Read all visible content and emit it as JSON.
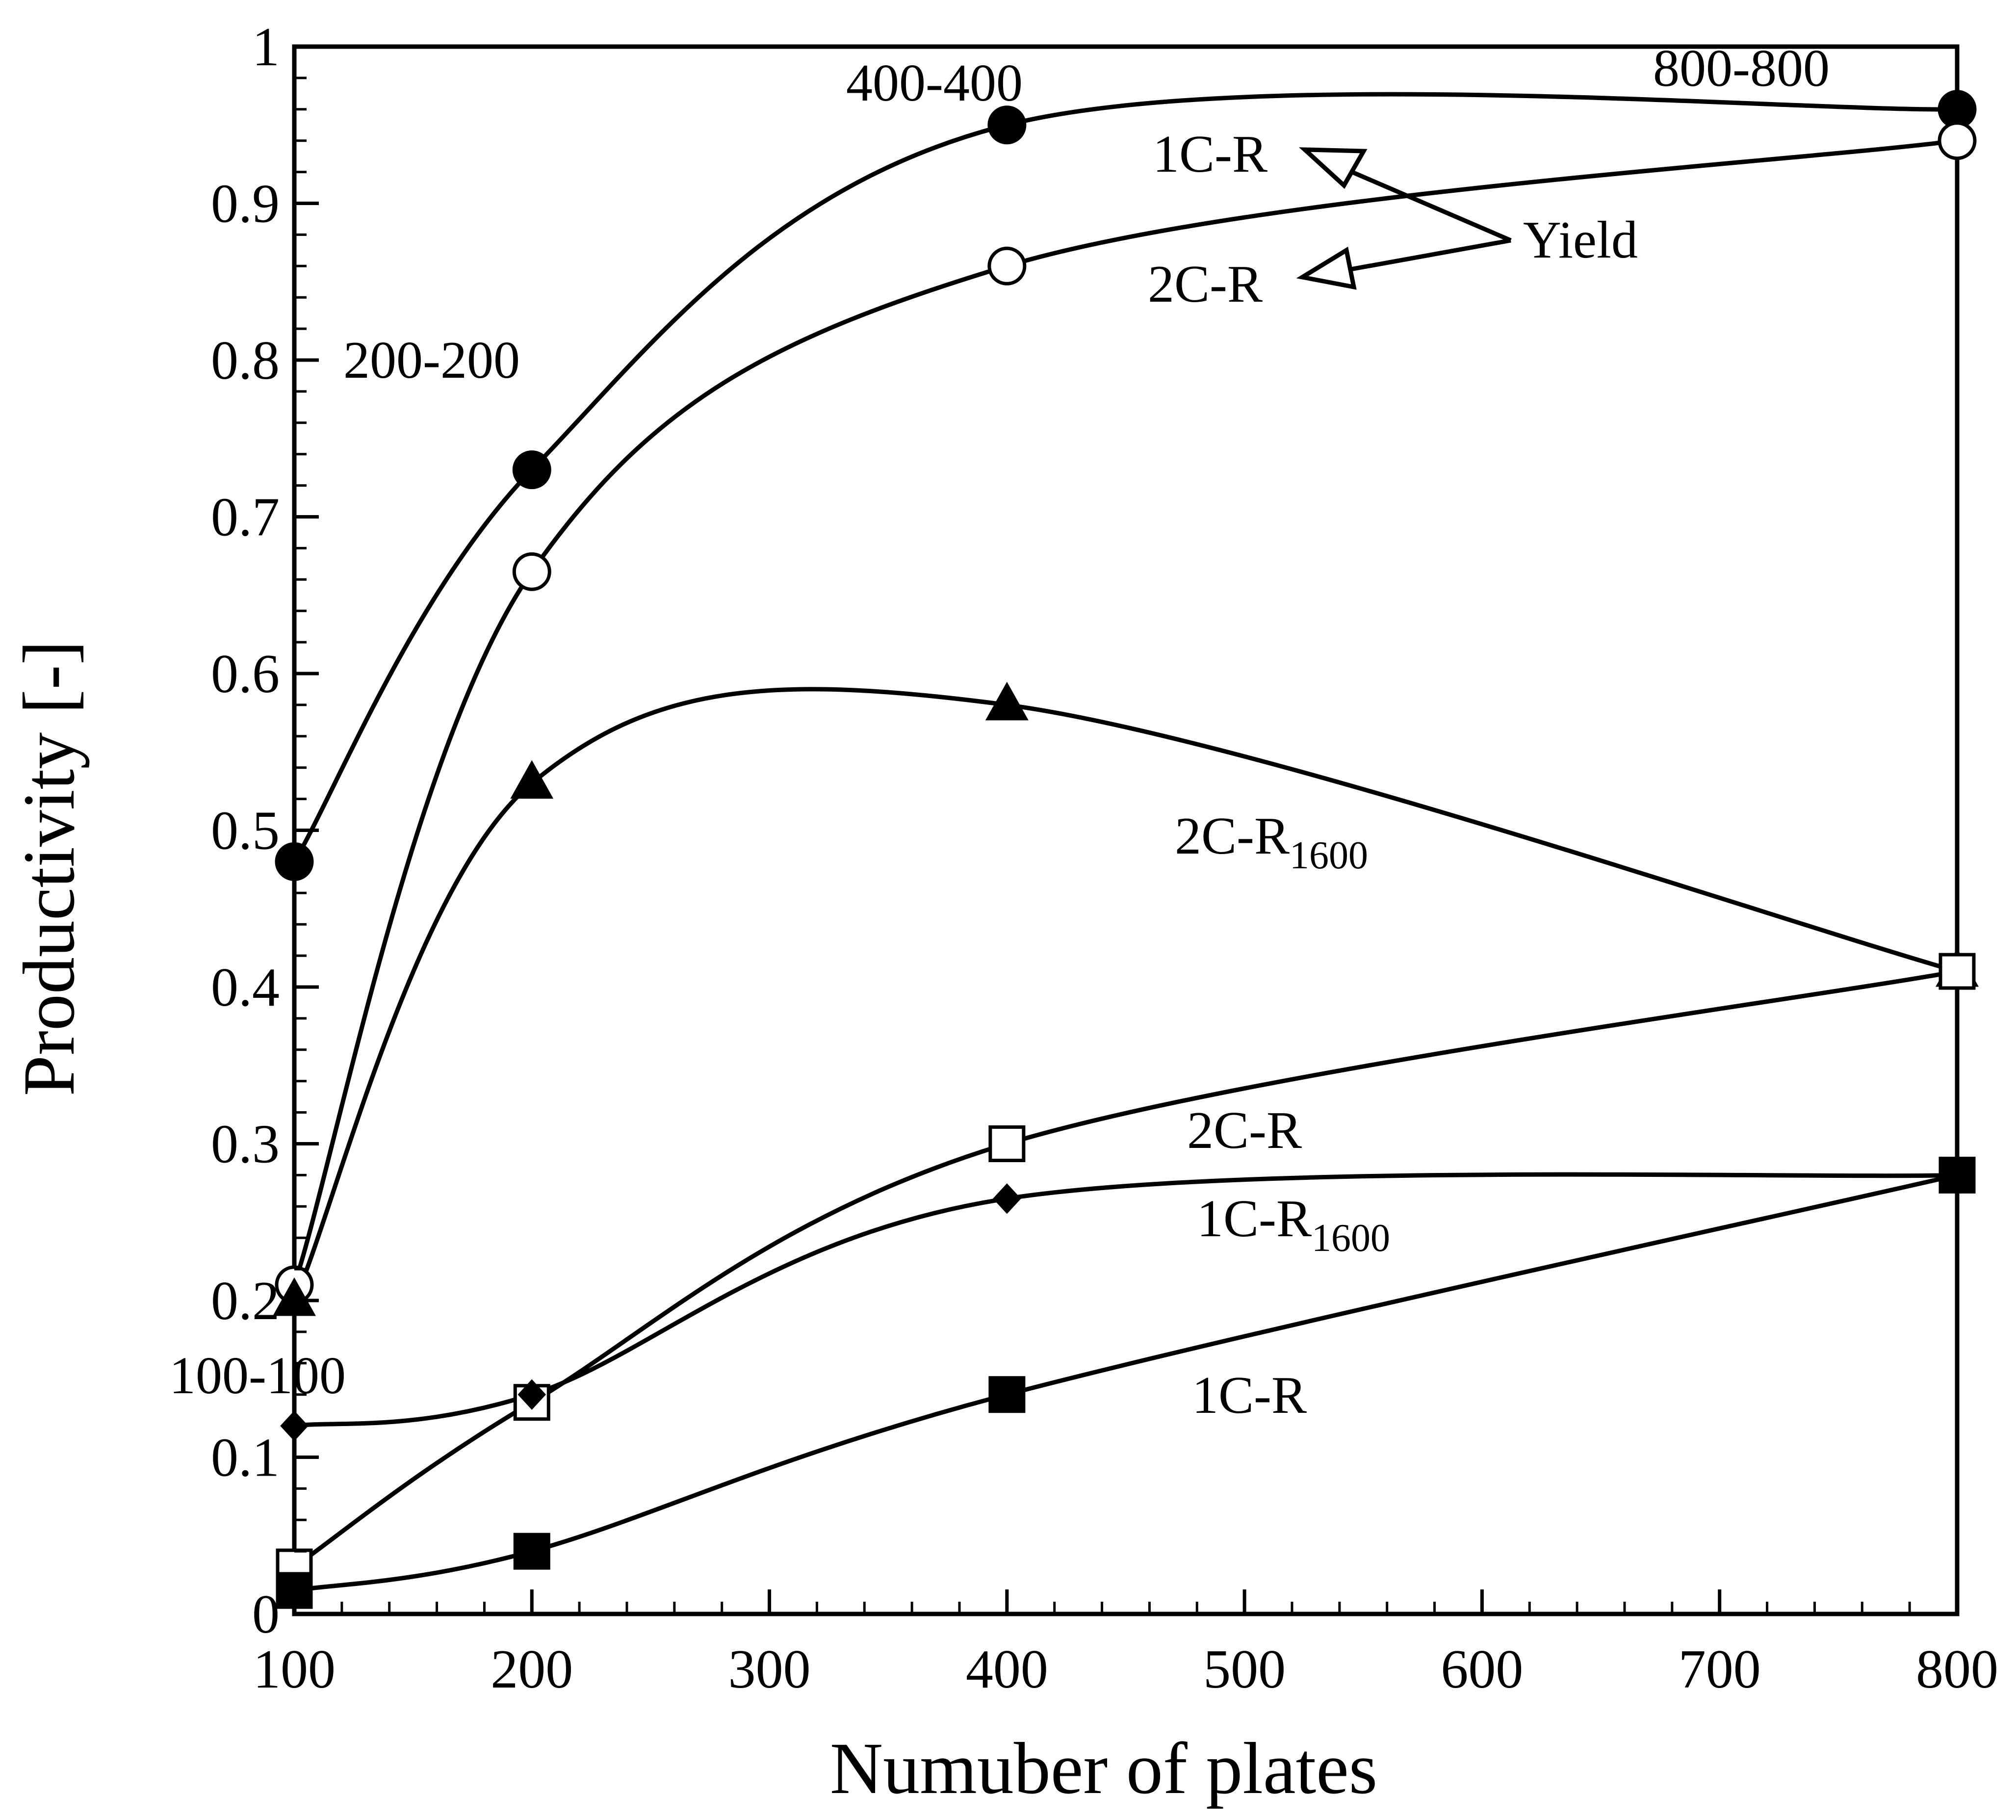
{
  "chart_data": {
    "type": "line",
    "xlabel": "Numuber of plates",
    "ylabel": "Productivity [-]",
    "xlim": [
      100,
      800
    ],
    "ylim": [
      0,
      1
    ],
    "xticks": [
      "100",
      "200",
      "300",
      "400",
      "500",
      "600",
      "700",
      "800"
    ],
    "yticks": [
      "0",
      "0.1",
      "0.2",
      "0.3",
      "0.4",
      "0.5",
      "0.6",
      "0.7",
      "0.8",
      "0.9",
      "1"
    ],
    "grid": false,
    "series": [
      {
        "name": "1C-R",
        "group": "Yield",
        "marker": "circle-filled",
        "x": [
          100,
          200,
          400,
          800
        ],
        "y": [
          0.48,
          0.73,
          0.95,
          0.96
        ]
      },
      {
        "name": "2C-R",
        "group": "Yield",
        "marker": "circle-open",
        "x": [
          100,
          200,
          400,
          800
        ],
        "y": [
          0.21,
          0.665,
          0.86,
          0.94
        ]
      },
      {
        "name": "2C-R1600",
        "marker": "triangle-filled",
        "x": [
          100,
          200,
          400,
          800
        ],
        "y": [
          0.2,
          0.53,
          0.58,
          0.41
        ]
      },
      {
        "name": "2C-R",
        "marker": "square-open",
        "x": [
          100,
          200,
          400,
          800
        ],
        "y": [
          0.03,
          0.135,
          0.3,
          0.41
        ]
      },
      {
        "name": "1C-R1600",
        "marker": "diamond-filled",
        "x": [
          100,
          200,
          400,
          800
        ],
        "y": [
          0.12,
          0.14,
          0.265,
          0.28
        ]
      },
      {
        "name": "1C-R",
        "marker": "square-filled",
        "x": [
          100,
          200,
          400,
          800
        ],
        "y": [
          0.015,
          0.04,
          0.14,
          0.28
        ]
      }
    ],
    "annotations": {
      "point_labels": [
        "100-100",
        "200-200",
        "400-400",
        "800-800"
      ],
      "yield_label": "Yield",
      "yield_1c": "1C-R",
      "yield_2c": "2C-R",
      "tri_main": "2C-R",
      "tri_sub": "1600",
      "sq_open": "2C-R",
      "diam_main": "1C-R",
      "diam_sub": "1600",
      "sq_filled": "1C-R"
    }
  }
}
